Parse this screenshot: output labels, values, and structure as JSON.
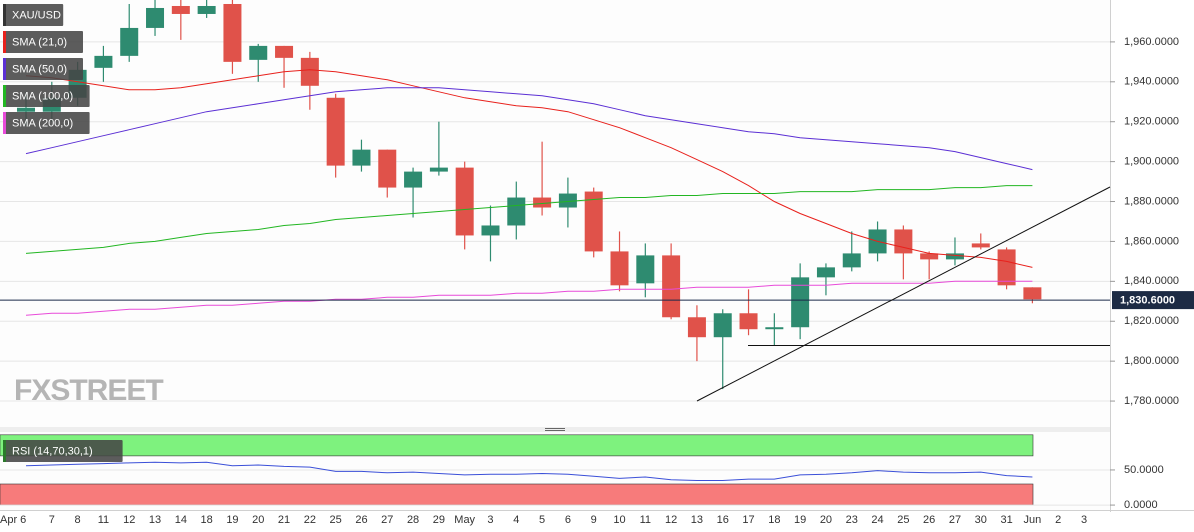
{
  "chart_data": [
    {
      "type": "candlestick",
      "title": "XAU/USD",
      "watermark": "FXSTREET",
      "categories": [
        "Apr 6",
        "7",
        "8",
        "11",
        "12",
        "13",
        "14",
        "18",
        "19",
        "20",
        "21",
        "22",
        "25",
        "26",
        "27",
        "28",
        "29",
        "May",
        "3",
        "4",
        "5",
        "6",
        "9",
        "10",
        "11",
        "12",
        "13",
        "16",
        "17",
        "18",
        "19",
        "20",
        "23",
        "24",
        "25",
        "26",
        "27",
        "30",
        "31",
        "Jun",
        "2",
        "3"
      ],
      "open": [
        1925,
        1925,
        1932,
        1947,
        1953,
        1967,
        1978,
        1974,
        1979,
        1951,
        1958,
        1952,
        1932,
        1898,
        1906,
        1887,
        1895,
        1897,
        1863,
        1868,
        1882,
        1877,
        1885,
        1855,
        1839,
        1853,
        1822,
        1812,
        1824,
        1816,
        1817,
        1842,
        1847,
        1854,
        1866,
        1854,
        1851,
        1859,
        1856,
        1837,
        null,
        null
      ],
      "high": [
        1935,
        1940,
        1950,
        1958,
        1979,
        1981,
        1981,
        1981,
        1981,
        1959,
        1958,
        1955,
        1934,
        1911,
        1906,
        1897,
        1920,
        1900,
        1878,
        1890,
        1910,
        1892,
        1887,
        1865,
        1859,
        1859,
        1828,
        1826,
        1836,
        1824,
        1849,
        1849,
        1865,
        1870,
        1868,
        1855,
        1862,
        1864,
        1857,
        1837,
        null,
        null
      ],
      "low": [
        1918,
        1920,
        1928,
        1940,
        1950,
        1963,
        1961,
        1972,
        1944,
        1940,
        1937,
        1926,
        1892,
        1895,
        1882,
        1872,
        1893,
        1856,
        1850,
        1861,
        1873,
        1867,
        1852,
        1835,
        1832,
        1821,
        1800,
        1786,
        1813,
        1808,
        1811,
        1833,
        1845,
        1850,
        1841,
        1841,
        1848,
        1856,
        1836,
        1829,
        null,
        null
      ],
      "close": [
        1927,
        1932,
        1946,
        1953,
        1967,
        1977,
        1974,
        1978,
        1950,
        1958,
        1952,
        1938,
        1898,
        1906,
        1887,
        1895,
        1897,
        1863,
        1868,
        1882,
        1877,
        1884,
        1855,
        1838,
        1853,
        1822,
        1812,
        1824,
        1816,
        1817,
        1842,
        1847,
        1854,
        1866,
        1854,
        1851,
        1854,
        1857,
        1838,
        1831,
        null,
        null
      ],
      "up_color": "#2e8b70",
      "down_color": "#e0524a",
      "series": [
        {
          "name": "SMA (21,0)",
          "color": "#e8211c",
          "values": [
            1943,
            1942,
            1940,
            1938,
            1936,
            1936,
            1937,
            1939,
            1941,
            1943,
            1945,
            1946,
            1945,
            1943,
            1941,
            1938,
            1935,
            1932,
            1930,
            1928,
            1927,
            1925,
            1921,
            1917,
            1912,
            1907,
            1901,
            1895,
            1888,
            1880,
            1874,
            1869,
            1864,
            1860,
            1857,
            1854,
            1853,
            1852,
            1850,
            1847,
            null,
            null
          ]
        },
        {
          "name": "SMA (50,0)",
          "color": "#5b2fd4",
          "values": [
            1904,
            1907,
            1910,
            1913,
            1916,
            1919,
            1922,
            1925,
            1927,
            1929,
            1931,
            1933,
            1935,
            1936,
            1937,
            1937,
            1937,
            1936,
            1935,
            1934,
            1933,
            1931,
            1929,
            1926,
            1923,
            1921,
            1919,
            1917,
            1915,
            1914,
            1912,
            1911,
            1910,
            1909,
            1908,
            1907,
            1905,
            1902,
            1899,
            1896,
            null,
            null
          ]
        },
        {
          "name": "SMA (100,0)",
          "color": "#22b622",
          "values": [
            1854,
            1855,
            1856,
            1857,
            1859,
            1860,
            1862,
            1864,
            1865,
            1866,
            1868,
            1869,
            1871,
            1872,
            1873,
            1874,
            1875,
            1876,
            1877,
            1878,
            1879,
            1880,
            1881,
            1882,
            1882,
            1883,
            1883,
            1884,
            1884,
            1884,
            1885,
            1885,
            1885,
            1886,
            1886,
            1886,
            1887,
            1887,
            1888,
            1888,
            null,
            null
          ]
        },
        {
          "name": "SMA (200,0)",
          "color": "#e84bd9",
          "values": [
            1823,
            1824,
            1824,
            1825,
            1826,
            1826,
            1827,
            1828,
            1828,
            1829,
            1830,
            1830,
            1831,
            1831,
            1832,
            1832,
            1833,
            1833,
            1833,
            1834,
            1834,
            1835,
            1835,
            1836,
            1836,
            1836,
            1837,
            1837,
            1837,
            1838,
            1838,
            1838,
            1839,
            1839,
            1839,
            1839,
            1840,
            1840,
            1840,
            1840,
            null,
            null
          ]
        }
      ],
      "last_price": {
        "value": 1830.6,
        "label": "1,830.6000"
      },
      "ylim": [
        1767,
        1981
      ],
      "yticks": [
        {
          "value": 1780,
          "label": "1,780.0000"
        },
        {
          "value": 1800,
          "label": "1,800.0000"
        },
        {
          "value": 1820,
          "label": "1,820.0000"
        },
        {
          "value": 1840,
          "label": "1,840.0000"
        },
        {
          "value": 1860,
          "label": "1,860.0000"
        },
        {
          "value": 1880,
          "label": "1,880.0000"
        },
        {
          "value": 1900,
          "label": "1,900.0000"
        },
        {
          "value": 1920,
          "label": "1,920.0000"
        },
        {
          "value": 1940,
          "label": "1,940.0000"
        },
        {
          "value": 1960,
          "label": "1,960.0000"
        }
      ],
      "grid": true
    },
    {
      "type": "line",
      "title": "RSI (14,70,30,1)",
      "color": "#3a4fd8",
      "values": [
        56,
        57,
        58,
        59,
        60,
        61,
        60,
        61,
        56,
        57,
        55,
        54,
        48,
        48,
        46,
        47,
        45,
        43,
        44,
        44,
        45,
        44,
        41,
        38,
        40,
        36,
        35,
        35,
        37,
        37,
        43,
        44,
        46,
        49,
        47,
        46,
        46,
        47,
        42,
        40,
        null,
        null
      ],
      "bands": [
        {
          "from": 70,
          "to": 100,
          "color": "#7ef27e"
        },
        {
          "from": 0,
          "to": 30,
          "color": "#f77b7b"
        }
      ],
      "ylim": [
        -7,
        104
      ],
      "yticks": [
        {
          "value": 0,
          "label": "0.0000"
        },
        {
          "value": 50,
          "label": "50.0000"
        }
      ],
      "grid": true
    }
  ]
}
